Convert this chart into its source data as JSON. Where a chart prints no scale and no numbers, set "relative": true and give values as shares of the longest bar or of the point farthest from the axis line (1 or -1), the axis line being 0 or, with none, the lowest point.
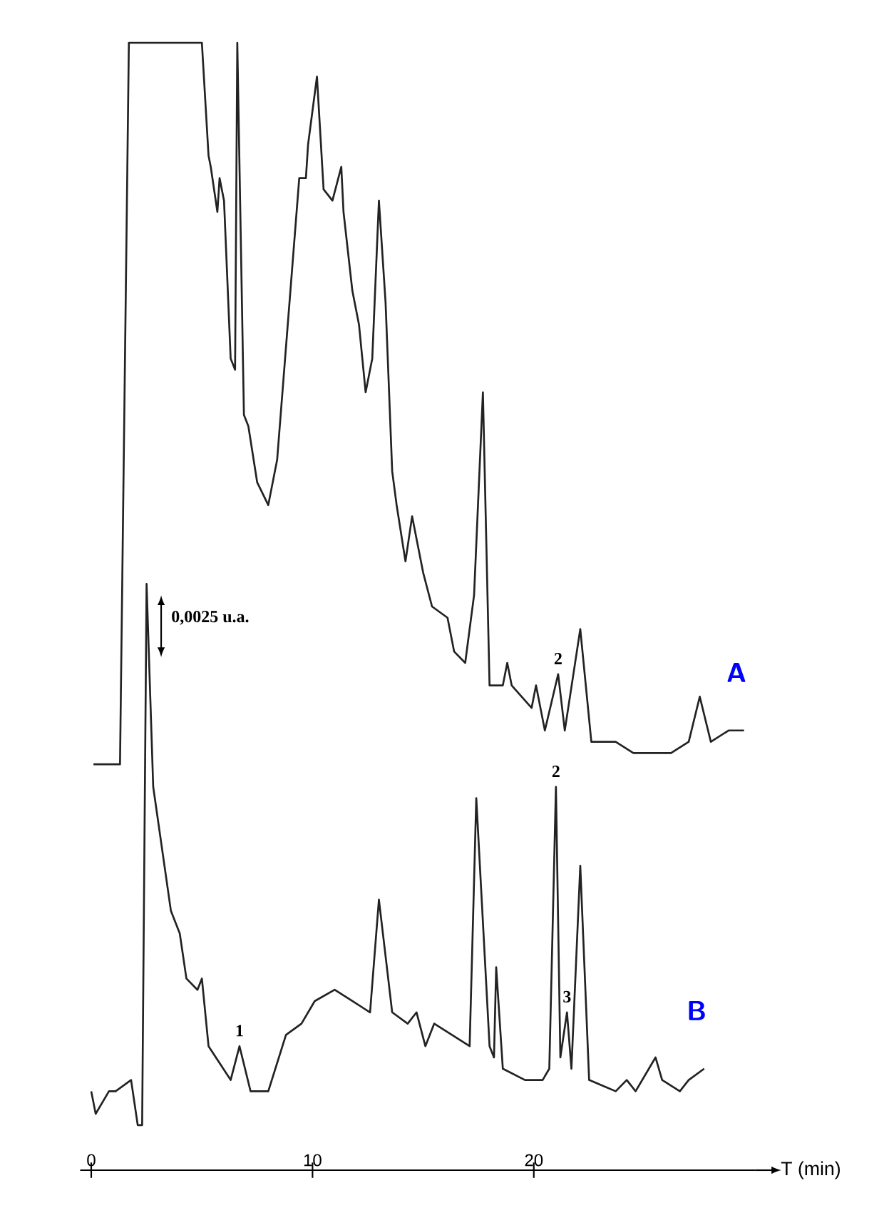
{
  "chart_data": {
    "type": "line",
    "relative": true,
    "xlabel": "T (min)",
    "xlim": [
      -0.5,
      30
    ],
    "xticks": [
      0,
      10,
      20
    ],
    "series": [
      {
        "name": "A",
        "color": "#222222",
        "x": [
          0.1,
          1.1,
          1.3,
          1.7,
          5.0,
          5.3,
          5.4,
          5.7,
          5.8,
          6.0,
          6.3,
          6.5,
          6.6,
          6.9,
          7.1,
          7.5,
          8.0,
          8.4,
          9.0,
          9.4,
          9.7,
          9.8,
          10.2,
          10.5,
          10.9,
          11.3,
          11.4,
          11.8,
          12.1,
          12.4,
          12.7,
          13.0,
          13.3,
          13.6,
          13.8,
          14.2,
          14.5,
          15.0,
          15.4,
          16.1,
          16.4,
          16.9,
          17.3,
          17.7,
          18.0,
          18.6,
          18.8,
          19.0,
          19.9,
          20.1,
          20.5,
          21.1,
          21.4,
          22.1,
          22.6,
          23.7,
          24.5,
          26.2,
          27.0,
          27.5,
          28.0,
          28.8,
          29.5
        ],
        "values": [
          0.36,
          0.36,
          0.36,
          1.0,
          1.0,
          0.9,
          0.89,
          0.85,
          0.88,
          0.86,
          0.72,
          0.71,
          1.0,
          0.67,
          0.66,
          0.61,
          0.59,
          0.63,
          0.78,
          0.88,
          0.88,
          0.91,
          0.97,
          0.87,
          0.86,
          0.89,
          0.85,
          0.78,
          0.75,
          0.69,
          0.72,
          0.86,
          0.77,
          0.62,
          0.59,
          0.54,
          0.58,
          0.53,
          0.5,
          0.49,
          0.46,
          0.45,
          0.51,
          0.69,
          0.43,
          0.43,
          0.45,
          0.43,
          0.41,
          0.43,
          0.39,
          0.44,
          0.39,
          0.48,
          0.38,
          0.38,
          0.37,
          0.37,
          0.38,
          0.42,
          0.38,
          0.39,
          0.39
        ]
      },
      {
        "name": "B",
        "color": "#222222",
        "x": [
          0.0,
          0.2,
          0.8,
          1.1,
          1.8,
          2.1,
          2.3,
          2.5,
          2.8,
          3.6,
          4.0,
          4.3,
          4.8,
          5.0,
          5.3,
          6.3,
          6.7,
          7.2,
          8.0,
          8.8,
          9.5,
          10.1,
          11.0,
          11.8,
          12.6,
          13.0,
          13.6,
          14.3,
          14.7,
          15.1,
          15.5,
          17.1,
          17.4,
          18.0,
          18.2,
          18.3,
          18.6,
          19.6,
          20.4,
          20.7,
          21.0,
          21.2,
          21.5,
          21.7,
          22.1,
          22.5,
          23.7,
          24.2,
          24.6,
          25.5,
          25.8,
          26.6,
          27.0,
          27.7
        ],
        "values": [
          0.07,
          0.05,
          0.07,
          0.07,
          0.08,
          0.04,
          0.04,
          0.52,
          0.34,
          0.23,
          0.21,
          0.17,
          0.16,
          0.17,
          0.11,
          0.08,
          0.11,
          0.07,
          0.07,
          0.12,
          0.13,
          0.15,
          0.16,
          0.15,
          0.14,
          0.24,
          0.14,
          0.13,
          0.14,
          0.11,
          0.13,
          0.11,
          0.33,
          0.11,
          0.1,
          0.18,
          0.09,
          0.08,
          0.08,
          0.09,
          0.34,
          0.1,
          0.14,
          0.09,
          0.27,
          0.08,
          0.07,
          0.08,
          0.07,
          0.1,
          0.08,
          0.07,
          0.08,
          0.09
        ]
      }
    ],
    "annotations": [
      "0,0025 u.a.",
      {
        "text": "1",
        "x": 6.7,
        "y": 0.11
      },
      {
        "text": "2",
        "x": 21.1,
        "y": 0.44
      },
      {
        "text": "2",
        "x": 21.0,
        "y": 0.34
      },
      {
        "text": "3",
        "x": 21.5,
        "y": 0.14
      }
    ]
  }
}
